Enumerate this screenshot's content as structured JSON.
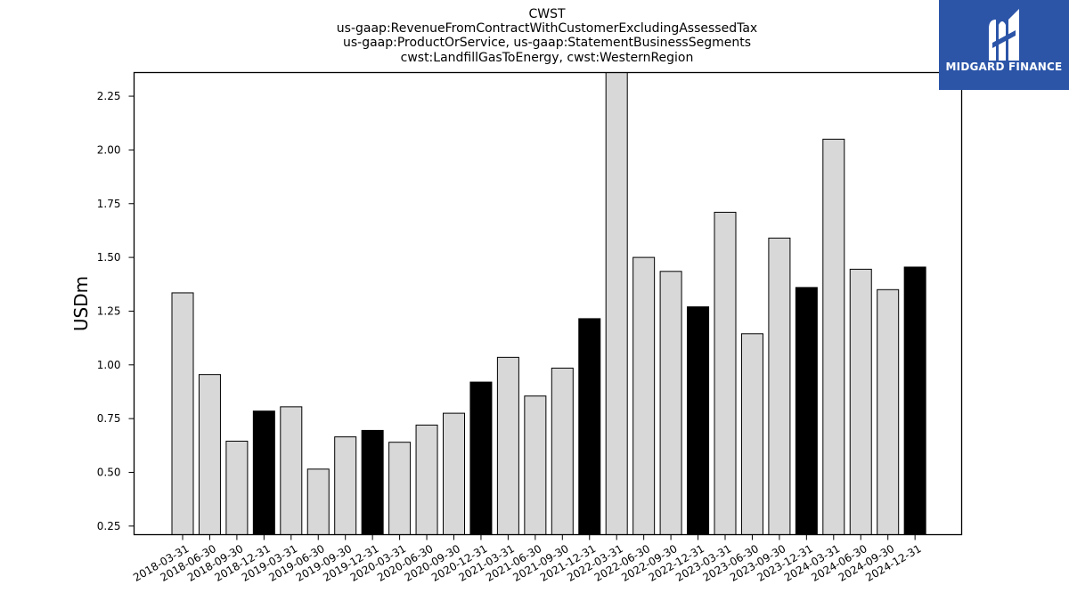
{
  "brand": {
    "name": "MIDGARD FINANCE",
    "logo_icon": "midgard-m-logo-icon",
    "background_color": "#2c55a8"
  },
  "chart_data": {
    "type": "bar",
    "title_lines": [
      "CWST",
      "us-gaap:RevenueFromContractWithCustomerExcludingAssessedTax",
      "us-gaap:ProductOrService, us-gaap:StatementBusinessSegments",
      "cwst:LandfillGasToEnergy, cwst:WesternRegion"
    ],
    "xlabel": "",
    "ylabel": "USDm",
    "ylim": [
      0.21,
      2.36
    ],
    "yticks": [
      "0.25",
      "0.50",
      "0.75",
      "1.00",
      "1.25",
      "1.50",
      "1.75",
      "2.00",
      "2.25"
    ],
    "categories": [
      "2018-03-31",
      "2018-06-30",
      "2018-09-30",
      "2018-12-31",
      "2019-03-31",
      "2019-06-30",
      "2019-09-30",
      "2019-12-31",
      "2020-03-31",
      "2020-06-30",
      "2020-09-30",
      "2020-12-31",
      "2021-03-31",
      "2021-06-30",
      "2021-09-30",
      "2021-12-31",
      "2022-03-31",
      "2022-06-30",
      "2022-09-30",
      "2022-12-31",
      "2023-03-31",
      "2023-06-30",
      "2023-09-30",
      "2023-12-31",
      "2024-03-31",
      "2024-06-30",
      "2024-09-30",
      "2024-12-31"
    ],
    "values": [
      1.335,
      0.955,
      0.645,
      0.785,
      0.805,
      0.515,
      0.665,
      0.695,
      0.64,
      0.72,
      0.775,
      0.92,
      1.035,
      0.855,
      0.985,
      1.215,
      2.38,
      1.5,
      1.435,
      1.27,
      1.71,
      1.145,
      1.59,
      1.36,
      2.05,
      1.445,
      1.35,
      1.455
    ],
    "bar_colors": {
      "default": "#d8d8d8",
      "quarter_end_december": "#000000",
      "edge": "#000000"
    },
    "grid": false,
    "legend": "none"
  }
}
